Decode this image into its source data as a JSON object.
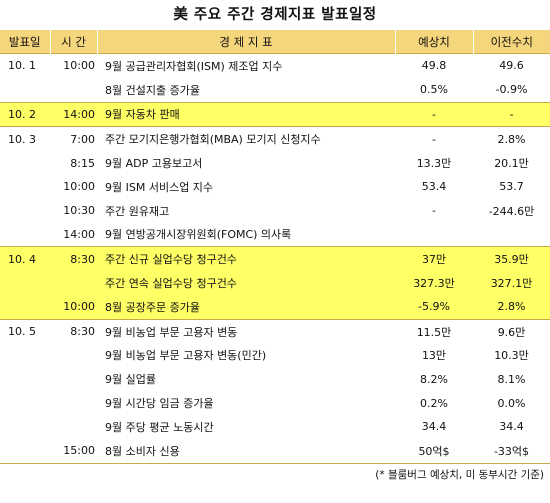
{
  "title": "美 주요 주간 경제지표 발표일정",
  "headers": {
    "date": "발표일",
    "time": "시 간",
    "indicator": "경 제 지 표",
    "forecast": "예상치",
    "previous": "이전수치"
  },
  "rows": [
    {
      "date": "10. 1",
      "time": "10:00",
      "indicator": "9월 공급관리자협회(ISM) 제조업 지수",
      "forecast": "49.8",
      "previous": "49.6"
    },
    {
      "date": "",
      "time": "",
      "indicator": "8월 건설지출 증가율",
      "forecast": "0.5%",
      "previous": "-0.9%"
    },
    {
      "date": "10. 2",
      "time": "14:00",
      "indicator": "9월 자동차 판매",
      "forecast": "-",
      "previous": "-"
    },
    {
      "date": "10. 3",
      "time": "7:00",
      "indicator": "주간 모기지은행가협회(MBA) 모기지 신청지수",
      "forecast": "-",
      "previous": "2.8%"
    },
    {
      "date": "",
      "time": "8:15",
      "indicator": "9월 ADP 고용보고서",
      "forecast": "13.3만",
      "previous": "20.1만"
    },
    {
      "date": "",
      "time": "10:00",
      "indicator": "9월 ISM 서비스업 지수",
      "forecast": "53.4",
      "previous": "53.7"
    },
    {
      "date": "",
      "time": "10:30",
      "indicator": "주간 원유재고",
      "forecast": "-",
      "previous": "-244.6만"
    },
    {
      "date": "",
      "time": "14:00",
      "indicator": "9월 연방공개시장위원회(FOMC) 의사록",
      "forecast": "",
      "previous": ""
    },
    {
      "date": "10. 4",
      "time": "8:30",
      "indicator": "주간 신규 실업수당 청구건수",
      "forecast": "37만",
      "previous": "35.9만"
    },
    {
      "date": "",
      "time": "",
      "indicator": "주간 연속 실업수당 청구건수",
      "forecast": "327.3만",
      "previous": "327.1만"
    },
    {
      "date": "",
      "time": "10:00",
      "indicator": "8월 공장주문 증가율",
      "forecast": "-5.9%",
      "previous": "2.8%"
    },
    {
      "date": "10. 5",
      "time": "8:30",
      "indicator": "9월 비농업 부문 고용자 변동",
      "forecast": "11.5만",
      "previous": "9.6만"
    },
    {
      "date": "",
      "time": "",
      "indicator": "9월 비농업 부문 고용자 변동(민간)",
      "forecast": "13만",
      "previous": "10.3만"
    },
    {
      "date": "",
      "time": "",
      "indicator": "9월 실업률",
      "forecast": "8.2%",
      "previous": "8.1%"
    },
    {
      "date": "",
      "time": "",
      "indicator": "9월 시간당 임금 증가율",
      "forecast": "0.2%",
      "previous": "0.0%"
    },
    {
      "date": "",
      "time": "",
      "indicator": "9월 주당 평균 노동시간",
      "forecast": "34.4",
      "previous": "34.4"
    },
    {
      "date": "",
      "time": "15:00",
      "indicator": "8월 소비자 신용",
      "forecast": "50억$",
      "previous": "-33억$"
    }
  ],
  "footer": "(* 블룸버그 예상치, 미 동부시간 기준)",
  "colors": {
    "header_bg": "#f6d67c",
    "highlight_bg": "#ffff66",
    "divider": "#c9a94a"
  }
}
